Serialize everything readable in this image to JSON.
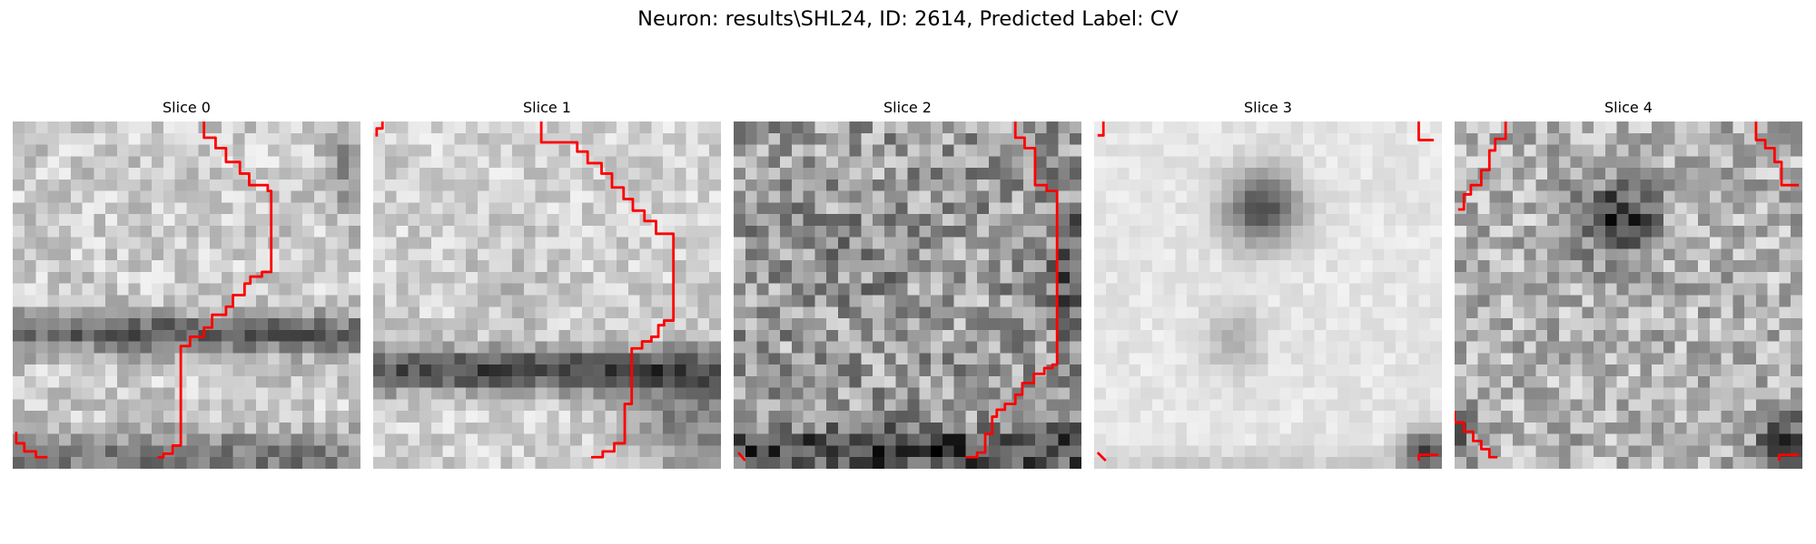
{
  "figure": {
    "title": "Neuron: results\\SHL24, ID: 2614, Predicted Label: CV"
  },
  "colors": {
    "background": "#ffffff",
    "contour": "#ff0000",
    "colormap": "grayscale"
  },
  "slices": [
    {
      "label": "Slice 0"
    },
    {
      "label": "Slice 1"
    },
    {
      "label": "Slice 2"
    },
    {
      "label": "Slice 3"
    },
    {
      "label": "Slice 4"
    }
  ]
}
